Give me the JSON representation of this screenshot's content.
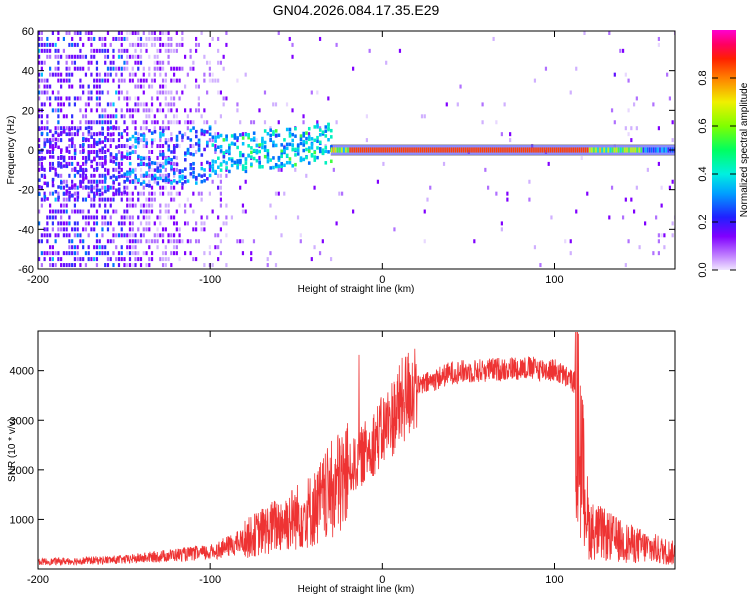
{
  "title": "GN04.2026.084.17.35.E29",
  "chart_data": [
    {
      "type": "heatmap",
      "xlabel": "Height of straight line (km)",
      "ylabel": "Frequency (Hz)",
      "xlim": [
        -200,
        170
      ],
      "ylim": [
        -60,
        60
      ],
      "xticks": [
        "-200",
        "-100",
        "0",
        "100"
      ],
      "yticks": [
        "-60",
        "-40",
        "-20",
        "0",
        "20",
        "40",
        "60"
      ],
      "xtick_values": [
        -200,
        -100,
        0,
        100
      ],
      "ytick_values": [
        -60,
        -40,
        -20,
        0,
        20,
        40,
        60
      ],
      "colorbar": {
        "label": "Normalized spectral amplitude",
        "ticks": [
          "0.0",
          "0.2",
          "0.4",
          "0.6",
          "0.8"
        ],
        "tick_values": [
          0.0,
          0.2,
          0.4,
          0.6,
          0.8
        ],
        "range": [
          0,
          1
        ],
        "colors": [
          "#f0e6ff",
          "#8000ff",
          "#0040ff",
          "#00e0ff",
          "#00ff40",
          "#e0ff00",
          "#ff6000",
          "#ff0040",
          "#ff00c0"
        ]
      },
      "band": {
        "description_values": "dominant component near 0 Hz",
        "strong_from_km": -30,
        "strong_to_km": 170,
        "frequency_hz": 0
      }
    },
    {
      "type": "line",
      "xlabel": "Height of straight line (km)",
      "ylabel": "SNR (10 * v/v)",
      "xlim": [
        -200,
        170
      ],
      "ylim": [
        0,
        4800
      ],
      "xticks": [
        "-200",
        "-100",
        "0",
        "100"
      ],
      "yticks": [
        "1000",
        "2000",
        "3000",
        "4000"
      ],
      "xtick_values": [
        -200,
        -100,
        0,
        100
      ],
      "ytick_values": [
        1000,
        2000,
        3000,
        4000
      ],
      "color": "#ee3333",
      "envelope": {
        "x": [
          -200,
          -150,
          -120,
          -100,
          -80,
          -60,
          -40,
          -20,
          0,
          20,
          40,
          60,
          80,
          100,
          112,
          120,
          140,
          170
        ],
        "y": [
          150,
          200,
          300,
          350,
          600,
          900,
          1200,
          1900,
          2700,
          3700,
          4000,
          4050,
          4100,
          4050,
          3800,
          900,
          600,
          350
        ]
      }
    }
  ]
}
